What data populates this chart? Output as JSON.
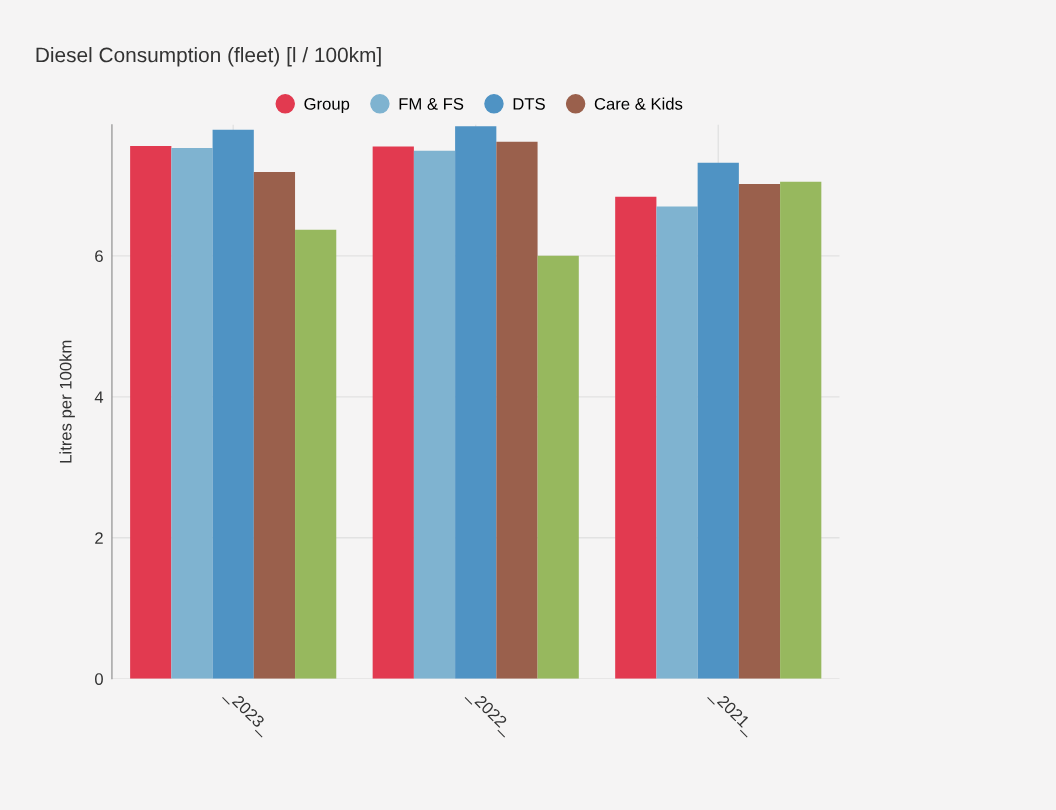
{
  "chart_data": {
    "type": "bar",
    "title": "Diesel Consumption (fleet) [l / 100km]",
    "ylabel": "Litres per 100km",
    "categories": [
      "_2023_",
      "_2022_",
      "_2021_"
    ],
    "series": [
      {
        "name": "Group",
        "color": "#e23a50",
        "values": [
          7.56,
          7.55,
          6.84
        ]
      },
      {
        "name": "FM & FS",
        "color": "#7fb3d0",
        "values": [
          7.53,
          7.49,
          6.7
        ]
      },
      {
        "name": "DTS",
        "color": "#4f93c4",
        "values": [
          7.79,
          7.84,
          7.32
        ]
      },
      {
        "name": "Care & Kids",
        "color": "#9a604c",
        "values": [
          7.19,
          7.62,
          7.02
        ]
      },
      {
        "color": "#97b85e",
        "values": [
          6.37,
          6.0,
          7.05
        ]
      }
    ],
    "ylim": [
      0,
      7.86
    ],
    "yticks": [
      0,
      2,
      4,
      6
    ],
    "grid": true,
    "legend": "top"
  }
}
